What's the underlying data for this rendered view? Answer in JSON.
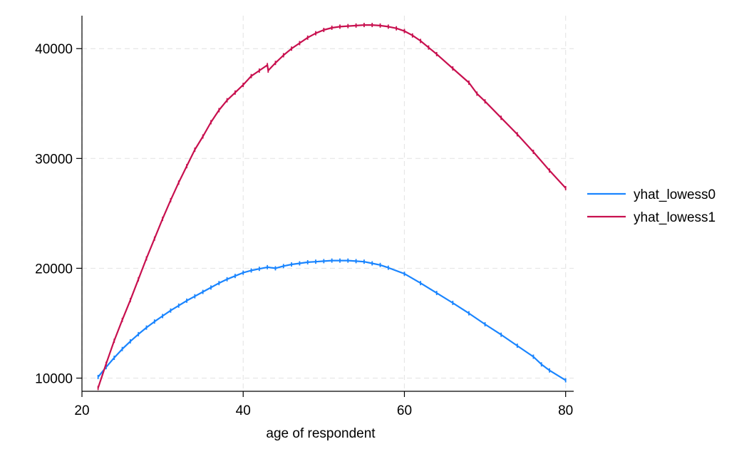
{
  "chart_data": {
    "type": "line",
    "title": "",
    "xlabel": "age of respondent",
    "ylabel": "",
    "xlim": [
      20,
      81
    ],
    "ylim": [
      8800,
      43000
    ],
    "xticks": [
      20,
      40,
      60,
      80
    ],
    "yticks": [
      10000,
      20000,
      30000,
      40000
    ],
    "xtick_labels": [
      "20",
      "40",
      "60",
      "80"
    ],
    "ytick_labels": [
      "10000",
      "20000",
      "30000",
      "40000"
    ],
    "grid": true,
    "legend_position": "right",
    "series": [
      {
        "name": "yhat_lowess0",
        "color": "#1a85ff",
        "x": [
          22,
          23,
          24,
          25,
          26,
          27,
          28,
          29,
          30,
          31,
          32,
          33,
          34,
          35,
          36,
          37,
          38,
          39,
          40,
          41,
          42,
          43,
          44,
          45,
          46,
          47,
          48,
          49,
          50,
          51,
          52,
          53,
          54,
          55,
          56,
          57,
          58,
          60,
          62,
          64,
          66,
          68,
          70,
          72,
          74,
          76,
          77,
          78,
          80
        ],
        "y": [
          10100,
          11000,
          11850,
          12650,
          13350,
          14000,
          14600,
          15150,
          15650,
          16150,
          16600,
          17050,
          17450,
          17850,
          18250,
          18650,
          19000,
          19300,
          19600,
          19800,
          19950,
          20100,
          20000,
          20200,
          20350,
          20450,
          20550,
          20600,
          20650,
          20700,
          20700,
          20700,
          20650,
          20600,
          20450,
          20300,
          20050,
          19500,
          18650,
          17750,
          16850,
          15900,
          14900,
          13950,
          12950,
          11950,
          11250,
          10700,
          9800
        ]
      },
      {
        "name": "yhat_lowess1",
        "color": "#c8104f",
        "x": [
          22,
          23,
          24,
          25,
          26,
          27,
          28,
          29,
          30,
          31,
          32,
          33,
          34,
          35,
          36,
          37,
          38,
          39,
          40,
          41,
          42,
          43,
          43.1,
          44,
          45,
          46,
          47,
          48,
          49,
          50,
          51,
          52,
          53,
          54,
          55,
          56,
          57,
          58,
          59,
          60,
          61,
          62,
          63,
          64,
          66,
          68,
          69,
          70,
          72,
          74,
          76,
          78,
          80
        ],
        "y": [
          9100,
          11300,
          13400,
          15300,
          17100,
          19000,
          20900,
          22700,
          24500,
          26200,
          27800,
          29300,
          30800,
          32000,
          33300,
          34400,
          35300,
          36000,
          36700,
          37500,
          38000,
          38500,
          38000,
          38700,
          39400,
          40000,
          40500,
          41000,
          41400,
          41700,
          41900,
          42000,
          42050,
          42100,
          42150,
          42150,
          42100,
          42000,
          41850,
          41600,
          41200,
          40700,
          40100,
          39500,
          38200,
          36900,
          35900,
          35200,
          33700,
          32200,
          30600,
          28900,
          27300
        ]
      }
    ]
  }
}
